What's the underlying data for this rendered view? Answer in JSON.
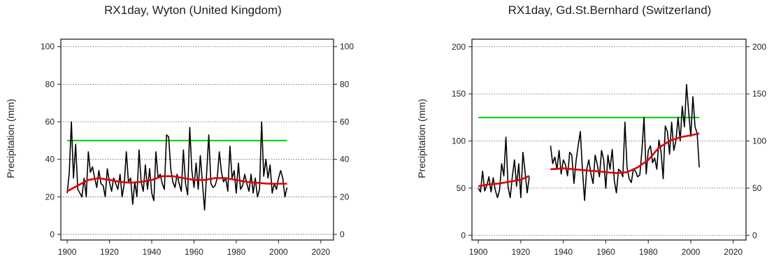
{
  "chart_data": [
    {
      "type": "line",
      "title": "RX1day, Wyton (United Kingdom)",
      "xlabel": "",
      "ylabel": "Precipitation (mm)",
      "xlim": [
        1897,
        2026
      ],
      "ylim": [
        -3,
        104
      ],
      "xticks": [
        1900,
        1920,
        1940,
        1960,
        1980,
        2000,
        2020
      ],
      "yticks": [
        0,
        20,
        40,
        60,
        80,
        100
      ],
      "grid": "horizontal dotted",
      "colors": {
        "annual": "#000000",
        "smooth": "#e00000",
        "threshold": "#00d000"
      },
      "series": [
        {
          "role": "annual-max",
          "x": [
            1900,
            1901,
            1902,
            1903,
            1904,
            1905,
            1906,
            1907,
            1908,
            1909,
            1910,
            1911,
            1912,
            1913,
            1914,
            1915,
            1916,
            1917,
            1918,
            1919,
            1920,
            1921,
            1922,
            1923,
            1924,
            1925,
            1926,
            1927,
            1928,
            1929,
            1930,
            1931,
            1932,
            1933,
            1934,
            1935,
            1936,
            1937,
            1938,
            1939,
            1940,
            1941,
            1942,
            1943,
            1944,
            1945,
            1946,
            1947,
            1948,
            1949,
            1950,
            1951,
            1952,
            1953,
            1954,
            1955,
            1956,
            1957,
            1958,
            1959,
            1960,
            1961,
            1962,
            1963,
            1964,
            1965,
            1966,
            1967,
            1968,
            1969,
            1970,
            1971,
            1972,
            1973,
            1974,
            1975,
            1976,
            1977,
            1978,
            1979,
            1980,
            1981,
            1982,
            1983,
            1984,
            1985,
            1986,
            1987,
            1988,
            1989,
            1990,
            1991,
            1992,
            1993,
            1994,
            1995,
            1996,
            1997,
            1998,
            1999,
            2000,
            2001,
            2002,
            2003,
            2004
          ],
          "values": [
            22,
            33,
            60,
            30,
            48,
            24,
            22,
            20,
            30,
            20,
            44,
            33,
            36,
            30,
            25,
            34,
            27,
            26,
            20,
            35,
            28,
            23,
            30,
            27,
            24,
            32,
            20,
            27,
            44,
            28,
            30,
            16,
            28,
            20,
            45,
            28,
            23,
            37,
            24,
            35,
            22,
            18,
            44,
            30,
            32,
            27,
            24,
            53,
            52,
            35,
            28,
            25,
            32,
            27,
            23,
            45,
            27,
            21,
            57,
            34,
            25,
            38,
            24,
            42,
            27,
            13,
            33,
            53,
            27,
            25,
            26,
            30,
            44,
            33,
            28,
            30,
            23,
            47,
            30,
            34,
            22,
            38,
            24,
            26,
            32,
            27,
            23,
            32,
            22,
            30,
            20,
            24,
            60,
            31,
            40,
            30,
            37,
            22,
            27,
            24,
            30,
            34,
            30,
            20,
            25
          ]
        },
        {
          "role": "smoothed",
          "x": [
            1900,
            1905,
            1910,
            1915,
            1920,
            1925,
            1930,
            1935,
            1940,
            1945,
            1950,
            1955,
            1960,
            1965,
            1970,
            1975,
            1980,
            1985,
            1990,
            1995,
            2000,
            2004
          ],
          "values": [
            23,
            26,
            29,
            30,
            29,
            28,
            27.5,
            28,
            29,
            31,
            31,
            30,
            29,
            29,
            30,
            30,
            29,
            28,
            27.5,
            27,
            27,
            27
          ]
        }
      ],
      "threshold": {
        "x": [
          1900,
          2004
        ],
        "value": 50
      }
    },
    {
      "type": "line",
      "title": "RX1day, Gd.St.Bernhard (Switzerland)",
      "xlabel": "",
      "ylabel": "Precipitation (mm)",
      "xlim": [
        1897,
        2026
      ],
      "ylim": [
        -5,
        208
      ],
      "xticks": [
        1900,
        1920,
        1940,
        1960,
        1980,
        2000,
        2020
      ],
      "yticks": [
        0,
        50,
        100,
        150,
        200
      ],
      "grid": "horizontal dotted",
      "colors": {
        "annual": "#000000",
        "smooth": "#e00000",
        "threshold": "#00d000"
      },
      "series": [
        {
          "role": "annual-max",
          "segments": [
            {
              "x": [
                1900,
                1901,
                1902,
                1903,
                1904,
                1905,
                1906,
                1907,
                1908,
                1909,
                1910,
                1911,
                1912,
                1913,
                1914,
                1915,
                1916,
                1917,
                1918,
                1919,
                1920,
                1921,
                1922,
                1923,
                1924
              ],
              "values": [
                50,
                46,
                68,
                47,
                53,
                62,
                46,
                61,
                48,
                40,
                48,
                76,
                63,
                104,
                51,
                40,
                62,
                80,
                52,
                76,
                40,
                88,
                67,
                45,
                62
              ]
            },
            {
              "x": [
                1934,
                1935,
                1936,
                1937,
                1938,
                1939,
                1940,
                1941,
                1942,
                1943,
                1944,
                1945,
                1946,
                1947,
                1948,
                1949,
                1950,
                1951,
                1952,
                1953,
                1954,
                1955,
                1956,
                1957,
                1958,
                1959,
                1960,
                1961,
                1962,
                1963,
                1964,
                1965,
                1966,
                1967,
                1968,
                1969,
                1970,
                1971,
                1972,
                1973,
                1974,
                1975,
                1976,
                1977,
                1978,
                1979,
                1980,
                1981,
                1982,
                1983,
                1984,
                1985,
                1986,
                1987,
                1988,
                1989,
                1990,
                1991,
                1992,
                1993,
                1994,
                1995,
                1996,
                1997,
                1998,
                1999,
                2000,
                2001,
                2002,
                2003,
                2004
              ],
              "values": [
                95,
                76,
                83,
                70,
                90,
                65,
                80,
                75,
                63,
                88,
                85,
                55,
                79,
                95,
                110,
                70,
                37,
                70,
                80,
                65,
                55,
                85,
                75,
                62,
                90,
                80,
                50,
                85,
                70,
                91,
                58,
                45,
                70,
                68,
                62,
                120,
                72,
                60,
                56,
                70,
                68,
                62,
                64,
                90,
                125,
                65,
                90,
                95,
                77,
                82,
                70,
                101,
                89,
                60,
                116,
                110,
                86,
                120,
                90,
                100,
                125,
                100,
                137,
                115,
                160,
                130,
                105,
                147,
                115,
                108,
                72
              ]
            }
          ]
        },
        {
          "role": "smoothed",
          "segments": [
            {
              "x": [
                1900,
                1905,
                1910,
                1915,
                1920,
                1924
              ],
              "values": [
                52,
                54,
                55,
                57,
                59,
                63
              ]
            },
            {
              "x": [
                1934,
                1940,
                1945,
                1950,
                1955,
                1960,
                1965,
                1970,
                1975,
                1980,
                1985,
                1990,
                1995,
                2000,
                2004
              ],
              "values": [
                70,
                71,
                70,
                69,
                68,
                67,
                66,
                67,
                72,
                80,
                93,
                100,
                104,
                106,
                108
              ]
            }
          ]
        }
      ],
      "threshold": {
        "x": [
          1900,
          2004
        ],
        "value": 125
      }
    }
  ]
}
